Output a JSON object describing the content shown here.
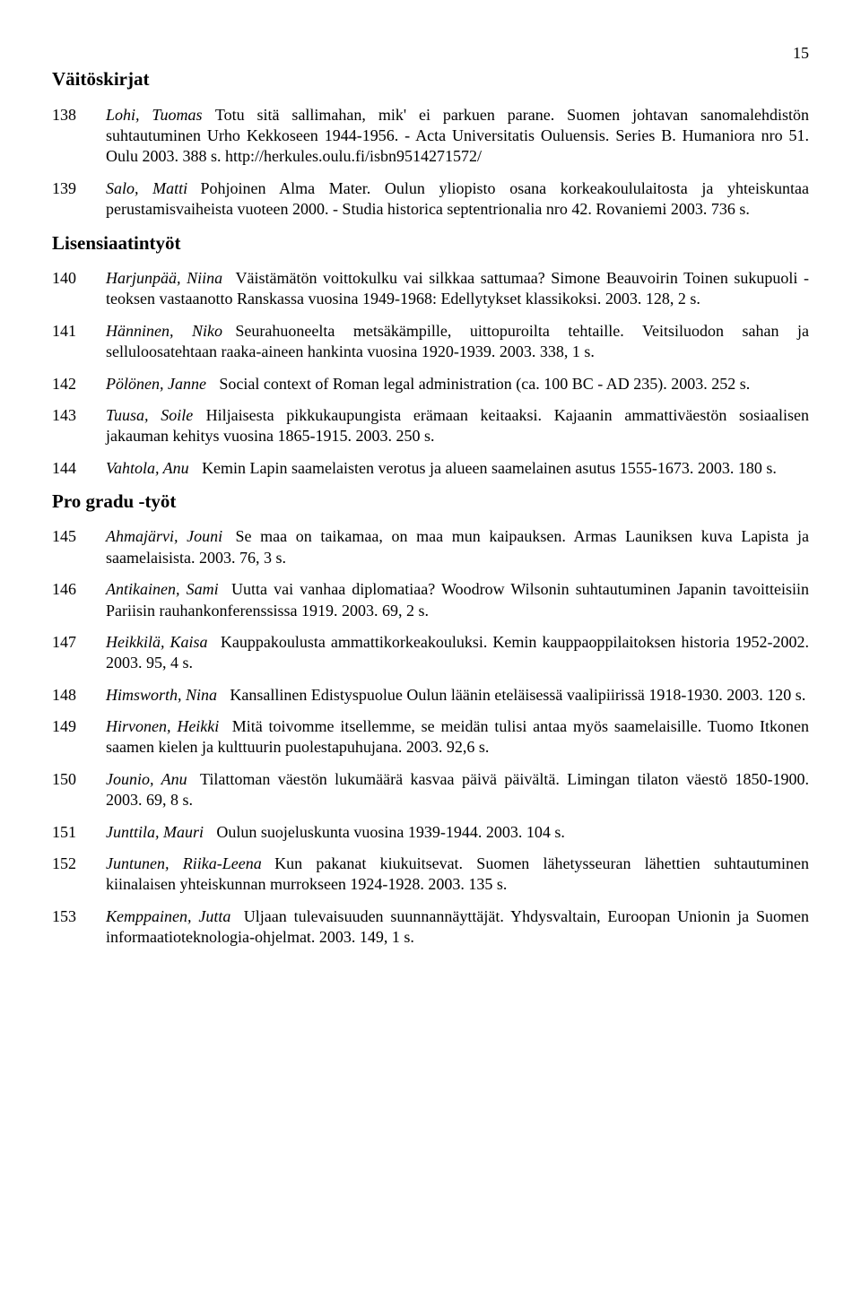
{
  "page_number": "15",
  "sections": {
    "dissertations": {
      "heading": "Väitöskirjat",
      "entries": [
        {
          "num": "138",
          "author": "Lohi, Tuomas",
          "text": "Totu sitä sallimahan, mik' ei parkuen parane. Suomen johtavan sanomalehdistön suhtautuminen Urho Kekkoseen 1944-1956. - Acta Universitatis Ouluensis. Series B. Humaniora nro 51. Oulu 2003. 388 s. http://herkules.oulu.fi/isbn9514271572/"
        },
        {
          "num": "139",
          "author": "Salo, Matti",
          "text": "Pohjoinen Alma Mater. Oulun yliopisto osana korkeakoululaitosta ja yhteiskuntaa perustamisvaiheista vuoteen 2000. - Studia historica septentrionalia nro 42. Rovaniemi 2003. 736 s."
        }
      ]
    },
    "licentiate": {
      "heading": "Lisensiaatintyöt",
      "entries": [
        {
          "num": "140",
          "author": "Harjunpää, Niina",
          "text": "Väistämätön voittokulku vai silkkaa sattumaa? Simone Beauvoirin Toinen sukupuoli -teoksen vastaanotto Ranskassa vuosina 1949-1968: Edellytykset klassikoksi. 2003. 128, 2 s."
        },
        {
          "num": "141",
          "author": "Hänninen, Niko",
          "text": "Seurahuoneelta metsäkämpille, uittopuroilta tehtaille. Veitsiluodon sahan ja selluloosatehtaan raaka-aineen hankinta vuosina 1920-1939. 2003. 338, 1 s."
        },
        {
          "num": "142",
          "author": "Pölönen, Janne",
          "text": "Social context of Roman legal administration (ca. 100 BC - AD 235). 2003. 252 s."
        },
        {
          "num": "143",
          "author": "Tuusa, Soile",
          "text": "Hiljaisesta pikkukaupungista erämaan keitaaksi. Kajaanin ammattiväestön sosiaalisen jakauman kehitys vuosina 1865-1915. 2003. 250 s."
        },
        {
          "num": "144",
          "author": "Vahtola, Anu",
          "text": "Kemin Lapin saamelaisten verotus ja alueen saamelainen asutus 1555-1673. 2003. 180 s."
        }
      ]
    },
    "progradu": {
      "heading": "Pro gradu -työt",
      "entries": [
        {
          "num": "145",
          "author": "Ahmajärvi, Jouni",
          "text": "Se maa on taikamaa, on maa mun kaipauksen. Armas Launiksen kuva Lapista ja saamelaisista. 2003. 76, 3 s."
        },
        {
          "num": "146",
          "author": "Antikainen, Sami",
          "text": "Uutta vai vanhaa diplomatiaa? Woodrow Wilsonin suhtautuminen Japanin tavoitteisiin Pariisin rauhankonferenssissa 1919. 2003. 69, 2 s."
        },
        {
          "num": "147",
          "author": "Heikkilä, Kaisa",
          "text": "Kauppakoulusta ammattikorkeakouluksi. Kemin kauppaoppilaitoksen historia 1952-2002. 2003. 95, 4 s."
        },
        {
          "num": "148",
          "author": "Himsworth, Nina",
          "text": "Kansallinen Edistyspuolue Oulun läänin eteläisessä vaalipiirissä 1918-1930. 2003. 120 s."
        },
        {
          "num": "149",
          "author": "Hirvonen, Heikki",
          "text": "Mitä toivomme itsellemme, se meidän tulisi antaa myös saamelaisille. Tuomo Itkonen saamen kielen ja kulttuurin puolestapuhujana. 2003. 92,6 s."
        },
        {
          "num": "150",
          "author": "Jounio, Anu",
          "text": "Tilattoman väestön lukumäärä kasvaa päivä päivältä. Limingan tilaton väestö 1850-1900. 2003. 69, 8 s."
        },
        {
          "num": "151",
          "author": "Junttila, Mauri",
          "text": "Oulun suojeluskunta vuosina 1939-1944. 2003. 104 s."
        },
        {
          "num": "152",
          "author": "Juntunen, Riika-Leena",
          "text": "Kun pakanat kiukuitsevat. Suomen lähetysseuran lähettien suhtautuminen kiinalaisen yhteiskunnan murrokseen 1924-1928. 2003. 135 s."
        },
        {
          "num": "153",
          "author": "Kemppainen, Jutta",
          "text": "Uljaan tulevaisuuden suunnannäyttäjät. Yhdysvaltain, Euroopan Unionin ja Suomen informaatioteknologia-ohjelmat. 2003. 149, 1 s."
        }
      ]
    }
  }
}
